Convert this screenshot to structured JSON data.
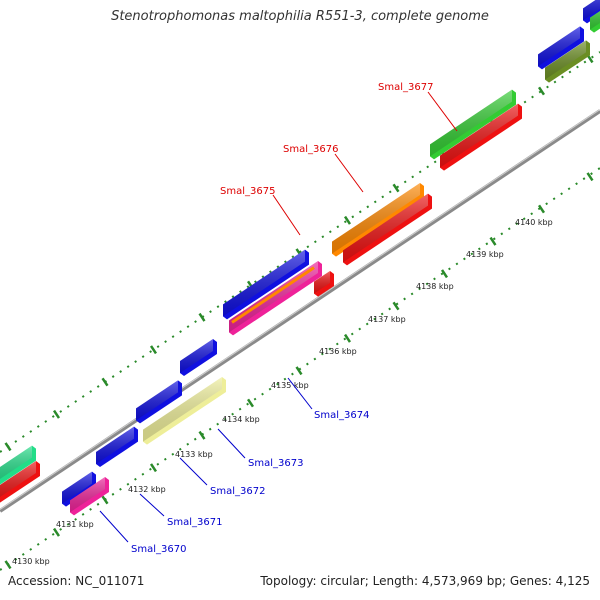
{
  "title": "Stenotrophomonas maltophilia R551-3, complete genome",
  "footer": {
    "accession": "Accession: NC_011071",
    "topology": "Topology: circular; Length: 4,573,969 bp; Genes: 4,125"
  },
  "axis": {
    "ticks": [
      "4130 kbp",
      "4131 kbp",
      "4132 kbp",
      "4133 kbp",
      "4134 kbp",
      "4135 kbp",
      "4136 kbp",
      "4137 kbp",
      "4138 kbp",
      "4139 kbp",
      "4140 kbp"
    ]
  },
  "genes_labeled": [
    {
      "label": "Smal_3670",
      "color": "#0000cc"
    },
    {
      "label": "Smal_3671",
      "color": "#0000cc"
    },
    {
      "label": "Smal_3672",
      "color": "#0000cc"
    },
    {
      "label": "Smal_3673",
      "color": "#0000cc"
    },
    {
      "label": "Smal_3674",
      "color": "#0000cc"
    },
    {
      "label": "Smal_3675",
      "color": "#dd0000"
    },
    {
      "label": "Smal_3676",
      "color": "#dd0000"
    },
    {
      "label": "Smal_3677",
      "color": "#dd0000"
    }
  ],
  "colors": {
    "blue": "#1010e0",
    "red": "#ee1111",
    "green": "#33cc33",
    "orange": "#ff8800",
    "yellow": "#eeee99",
    "pink": "#ee2299",
    "olive": "#6b8e23",
    "teal": "#22dd88"
  }
}
